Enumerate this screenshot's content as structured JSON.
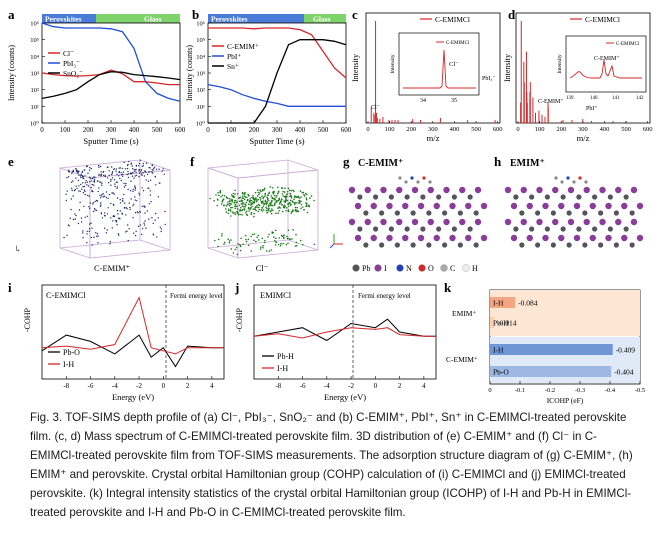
{
  "panels": {
    "a": {
      "letter": "a",
      "region_left": "Perovskites",
      "region_right": "Glass",
      "legend": [
        "Cl⁻",
        "PbI₃⁻",
        "SnO₂⁻"
      ],
      "ylabel": "Intensity (counts)",
      "xlabel": "Sputter Time (s)",
      "xticks": [
        "0",
        "100",
        "200",
        "300",
        "400",
        "500",
        "600"
      ],
      "yticks": [
        "10⁰",
        "10¹",
        "10²",
        "10³",
        "10⁴",
        "10⁵",
        "10⁶"
      ]
    },
    "b": {
      "letter": "b",
      "region_left": "Perovskites",
      "region_right": "Glass",
      "legend": [
        "C-EMIM⁺",
        "PbI⁺",
        "Sn⁺"
      ],
      "ylabel": "Intensity (counts)",
      "xlabel": "Sputter Time (s)",
      "xticks": [
        "0",
        "100",
        "200",
        "300",
        "400",
        "500",
        "600"
      ],
      "yticks": [
        "10⁰",
        "10¹",
        "10²",
        "10³",
        "10⁴",
        "10⁵",
        "10⁶"
      ]
    },
    "c": {
      "letter": "c",
      "legend": "C-EMIMCl",
      "inset_legend": "C-EMIMCl",
      "inset_peak": "Cl⁻",
      "inset_ylabel": "Intensity",
      "inset_xticks": [
        "34",
        "35"
      ],
      "side_label": "PbI₃⁻",
      "peak_label": "Cl⁻",
      "ylabel": "Intensity",
      "xlabel": "m/z",
      "xticks": [
        "0",
        "100",
        "200",
        "300",
        "400",
        "500",
        "600"
      ]
    },
    "d": {
      "letter": "d",
      "legend": "C-EMIMCl",
      "inset_legend": "C-EMIMCl",
      "inset_peak": "C-EMIM⁺",
      "inset_ylabel": "Intensity",
      "inset_xticks": [
        "139",
        "140",
        "141",
        "142"
      ],
      "peak_label": "C-EMIM⁺",
      "side_label": "PbI⁺",
      "ylabel": "Intensity",
      "xlabel": "m/z",
      "xticks": [
        "0",
        "100",
        "200",
        "300",
        "400",
        "500",
        "600"
      ]
    },
    "e": {
      "letter": "e",
      "label": "C-EMIM⁺"
    },
    "f": {
      "letter": "f",
      "label": "Cl⁻"
    },
    "g": {
      "letter": "g",
      "title": "C-EMIM⁺"
    },
    "h": {
      "letter": "h",
      "title": "EMIM⁺"
    },
    "g_legend": [
      "Pb",
      "I",
      "N",
      "O",
      "C",
      "H"
    ],
    "i": {
      "letter": "i",
      "title": "C-EMIMCl",
      "fermi": "Fermi energy level",
      "legend": [
        "Pb-O",
        "I-H"
      ],
      "ylabel": "-COHP",
      "xlabel": "Energy (eV)",
      "xticks": [
        "-8",
        "-6",
        "-4",
        "-2",
        "0",
        "2",
        "4"
      ]
    },
    "j": {
      "letter": "j",
      "title": "EMIMCl",
      "fermi": "Fermi energy level",
      "legend": [
        "Pb-H",
        "I-H"
      ],
      "ylabel": "-COHP",
      "xlabel": "Energy (eV)",
      "xticks": [
        "-8",
        "-6",
        "-4",
        "-2",
        "0",
        "2",
        "4"
      ]
    },
    "k": {
      "letter": "k",
      "xlabel": "ICOHP (eF)",
      "xticks": [
        "0",
        "-0.1",
        "-0.2",
        "-0.3",
        "-0.4",
        "-0.5"
      ],
      "groups": [
        "EMIM⁺",
        "C-EMIM⁺"
      ]
    }
  },
  "chart_data": [
    {
      "type": "line",
      "panel": "a",
      "x": [
        0,
        50,
        100,
        150,
        200,
        250,
        300,
        350,
        400,
        450,
        500,
        550,
        600
      ],
      "series": [
        {
          "name": "Cl⁻",
          "values": [
            1000,
            800,
            700,
            650,
            700,
            800,
            1500,
            900,
            300,
            300,
            250,
            200,
            200
          ]
        },
        {
          "name": "PbI₃⁻",
          "values": [
            1000000,
            600000,
            500000,
            500000,
            500000,
            500000,
            450000,
            300000,
            30000,
            300,
            60,
            30,
            20
          ]
        },
        {
          "name": "SnO₂⁻",
          "values": [
            30,
            40,
            60,
            100,
            300,
            800,
            1200,
            1100,
            800,
            700,
            600,
            500,
            400
          ]
        }
      ]
    },
    {
      "type": "line",
      "panel": "b",
      "x": [
        0,
        50,
        100,
        150,
        200,
        250,
        300,
        350,
        400,
        450,
        500,
        550,
        600
      ],
      "series": [
        {
          "name": "C-EMIM⁺",
          "values": [
            500000,
            500000,
            500000,
            500000,
            450000,
            500000,
            500000,
            500000,
            400000,
            200000,
            20000,
            2000,
            500
          ]
        },
        {
          "name": "PbI⁺",
          "values": [
            200,
            150,
            100,
            50,
            30,
            20,
            15,
            10,
            10,
            10,
            10,
            10,
            10
          ]
        },
        {
          "name": "Sn⁺",
          "values": [
            1,
            1,
            1,
            1,
            1,
            10,
            1000,
            50000,
            100000,
            100000,
            100000,
            80000,
            50000
          ]
        }
      ]
    },
    {
      "type": "bar",
      "panel": "c",
      "series": [
        {
          "name": "C-EMIMCl",
          "x": [
            15,
            27,
            29,
            35,
            39,
            43,
            55,
            69,
            97,
            111,
            125,
            139,
            207,
            243,
            335,
            461,
            588
          ],
          "values": [
            15,
            10,
            8,
            100,
            10,
            5,
            4,
            6,
            3,
            3,
            3,
            3,
            4,
            3,
            5,
            3,
            3
          ]
        }
      ]
    },
    {
      "type": "bar",
      "panel": "d",
      "series": [
        {
          "name": "C-EMIMCl",
          "x": [
            12,
            15,
            27,
            29,
            39,
            41,
            43,
            55,
            57,
            69,
            81,
            97,
            111,
            125,
            139,
            140,
            208,
            250,
            300,
            340,
            440,
            500
          ],
          "values": [
            20,
            100,
            60,
            40,
            70,
            30,
            20,
            30,
            40,
            25,
            10,
            12,
            8,
            6,
            20,
            15,
            3,
            3,
            4,
            2,
            2,
            2
          ]
        }
      ]
    },
    {
      "type": "line",
      "panel": "i",
      "x": [
        -10,
        -8,
        -6,
        -4,
        -2,
        -1,
        0,
        1,
        2,
        4,
        5
      ],
      "series": [
        {
          "name": "Pb-O",
          "values": [
            -0.1,
            0.4,
            0.2,
            -0.2,
            0.4,
            -0.3,
            0.0,
            -0.6,
            0.05,
            0.0,
            0.0
          ]
        },
        {
          "name": "I-H",
          "values": [
            0,
            0.05,
            -0.05,
            0.1,
            1.6,
            0.0,
            -0.1,
            -0.2,
            0.0,
            0.0,
            0.0
          ]
        }
      ]
    },
    {
      "type": "line",
      "panel": "j",
      "x": [
        -10,
        -8,
        -6,
        -4,
        -2,
        0,
        1,
        2,
        4,
        5
      ],
      "series": [
        {
          "name": "Pb-H",
          "values": [
            0,
            0.05,
            0.1,
            -0.05,
            0.15,
            0.1,
            0.2,
            0.05,
            0.0,
            0.0
          ]
        },
        {
          "name": "I-H",
          "values": [
            0,
            0.03,
            -0.02,
            0.05,
            0.1,
            0.08,
            0.1,
            0.02,
            0.0,
            0.0
          ]
        }
      ]
    },
    {
      "type": "bar",
      "panel": "k",
      "orientation": "horizontal",
      "categories": [
        "I-H",
        "Pb-H",
        "I-H",
        "Pb-O"
      ],
      "groups": [
        "EMIM⁺",
        "EMIM⁺",
        "C-EMIM⁺",
        "C-EMIM⁺"
      ],
      "values": [
        -0.084,
        -0.014,
        -0.409,
        -0.404
      ],
      "labels": [
        "-0.084",
        "-0.014",
        "-0.409",
        "-0.404"
      ],
      "xlim": [
        0,
        -0.5
      ]
    }
  ],
  "caption": "Fig. 3. TOF-SIMS depth profile of (a) Cl⁻, PbI₃⁻, SnO₂⁻ and (b) C-EMIM⁺, PbI⁺, Sn⁺ in C-EMIMCl-treated perovskite film. (c, d) Mass spectrum of C-EMIMCl-treated perovskite film. 3D distribution of (e) C-EMIM⁺ and (f) Cl⁻ in C-EMIMCl-treated perovskite film from TOF-SIMS measurements. The adsorption structure diagram of (g) C-EMIM⁺, (h) EMIM⁺ and perovskite. Crystal orbital Hamiltonian group (COHP) calculation of (i) C-EMIMCl and (j) EMIMCl-treated perovskite. (k) Integral intensity statistics of the crystal orbital Hamiltonian group (ICOHP) of I-H and Pb-H in EMIMCl-treated perovskite and I-H and Pb-O in C-EMIMCl-treated perovskite film."
}
